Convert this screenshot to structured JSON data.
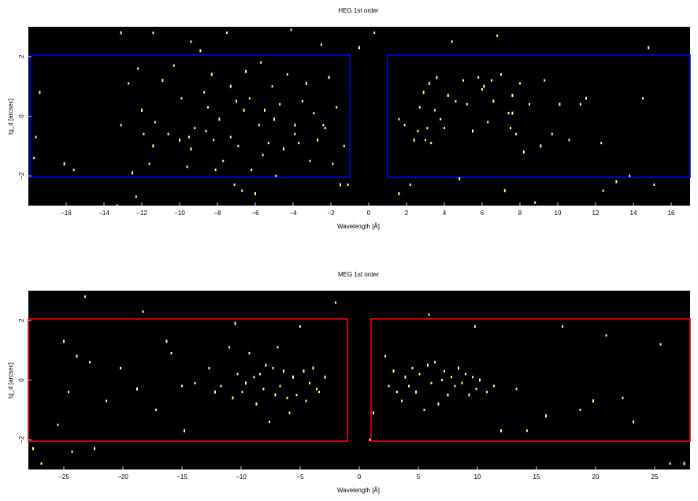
{
  "chart_data": [
    {
      "type": "scatter",
      "title": "HEG 1st order",
      "xlabel": "Wavelength [Å]",
      "ylabel": "tg_d [arcsec]",
      "xlim": [
        -18,
        17
      ],
      "ylim": [
        -3,
        3
      ],
      "background": "#000000",
      "point_color": "#ffff80",
      "xticks": [
        -16,
        -14,
        -12,
        -10,
        -8,
        -6,
        -4,
        -2,
        0,
        2,
        4,
        6,
        8,
        10,
        12,
        14,
        16
      ],
      "yticks": [
        -2,
        0,
        2
      ],
      "regions": [
        {
          "x": [
            -17.9,
            -1.0
          ],
          "y": [
            -2.05,
            2.05
          ],
          "color": "#0000ff"
        },
        {
          "x": [
            1.0,
            17.0
          ],
          "y": [
            -2.05,
            2.05
          ],
          "color": "#0000ff"
        }
      ],
      "points": [
        [
          -17.4,
          0.8
        ],
        [
          -17.6,
          -0.7
        ],
        [
          -17.7,
          -1.4
        ],
        [
          -16.1,
          -1.6
        ],
        [
          -15.6,
          -1.8
        ],
        [
          -13.3,
          -3.0
        ],
        [
          -13.1,
          2.8
        ],
        [
          -13.1,
          -0.3
        ],
        [
          -12.7,
          1.1
        ],
        [
          -12.5,
          -1.9
        ],
        [
          -12.3,
          -2.7
        ],
        [
          -12.2,
          1.6
        ],
        [
          -12.0,
          0.2
        ],
        [
          -11.9,
          -0.6
        ],
        [
          -11.6,
          -1.6
        ],
        [
          -11.4,
          -1.0
        ],
        [
          -11.4,
          2.8
        ],
        [
          -11.3,
          -0.2
        ],
        [
          -10.9,
          1.2
        ],
        [
          -10.6,
          -0.6
        ],
        [
          -10.3,
          1.7
        ],
        [
          -10.0,
          -0.8
        ],
        [
          -9.9,
          0.6
        ],
        [
          -9.6,
          -1.7
        ],
        [
          -9.4,
          -1.1
        ],
        [
          -9.4,
          2.5
        ],
        [
          -9.2,
          -0.4
        ],
        [
          -8.9,
          2.2
        ],
        [
          -8.6,
          -0.5
        ],
        [
          -8.5,
          0.3
        ],
        [
          -8.3,
          1.4
        ],
        [
          -8.2,
          -0.8
        ],
        [
          -8.1,
          -1.8
        ],
        [
          -7.9,
          -0.1
        ],
        [
          -7.7,
          -1.5
        ],
        [
          -7.5,
          2.8
        ],
        [
          -7.3,
          1.0
        ],
        [
          -7.3,
          -0.7
        ],
        [
          -7.1,
          -2.3
        ],
        [
          -7.0,
          0.5
        ],
        [
          -6.9,
          -1.0
        ],
        [
          -6.7,
          -2.5
        ],
        [
          -6.5,
          1.5
        ],
        [
          -6.3,
          0.6
        ],
        [
          -6.2,
          -1.8
        ],
        [
          -6.0,
          -2.6
        ],
        [
          -5.8,
          -0.3
        ],
        [
          -5.7,
          1.8
        ],
        [
          -5.5,
          0.2
        ],
        [
          -5.3,
          -0.9
        ],
        [
          -5.1,
          1.0
        ],
        [
          -5.0,
          -0.1
        ],
        [
          -4.9,
          -2.0
        ],
        [
          -4.7,
          0.4
        ],
        [
          -4.5,
          -1.1
        ],
        [
          -4.3,
          1.4
        ],
        [
          -4.1,
          2.9
        ],
        [
          -3.9,
          -0.3
        ],
        [
          -3.7,
          -0.9
        ],
        [
          -3.5,
          0.5
        ],
        [
          -3.3,
          1.1
        ],
        [
          -3.1,
          -1.5
        ],
        [
          -2.9,
          0.1
        ],
        [
          -2.7,
          -0.8
        ],
        [
          -2.5,
          2.4
        ],
        [
          -2.3,
          -0.4
        ],
        [
          -2.1,
          1.3
        ],
        [
          -1.9,
          -1.6
        ],
        [
          -1.7,
          0.3
        ],
        [
          -1.5,
          -2.3
        ],
        [
          -1.3,
          -1.0
        ],
        [
          -1.1,
          -2.3
        ],
        [
          -0.5,
          2.3
        ],
        [
          0.3,
          2.8
        ],
        [
          1.6,
          -0.1
        ],
        [
          1.6,
          -2.6
        ],
        [
          1.9,
          -0.3
        ],
        [
          2.2,
          -2.3
        ],
        [
          2.4,
          -0.8
        ],
        [
          2.6,
          -0.5
        ],
        [
          2.7,
          0.3
        ],
        [
          2.9,
          0.8
        ],
        [
          3.0,
          -0.8
        ],
        [
          3.1,
          -0.4
        ],
        [
          3.2,
          1.1
        ],
        [
          3.3,
          -0.9
        ],
        [
          3.5,
          0.2
        ],
        [
          3.6,
          1.3
        ],
        [
          3.8,
          -0.1
        ],
        [
          4.0,
          -0.4
        ],
        [
          4.2,
          0.7
        ],
        [
          4.4,
          2.5
        ],
        [
          4.6,
          0.5
        ],
        [
          4.8,
          -2.1
        ],
        [
          5.0,
          1.2
        ],
        [
          5.2,
          0.4
        ],
        [
          5.5,
          -0.5
        ],
        [
          5.8,
          1.3
        ],
        [
          6.0,
          0.9
        ],
        [
          6.1,
          1.0
        ],
        [
          6.3,
          -0.2
        ],
        [
          6.5,
          1.2
        ],
        [
          6.6,
          0.5
        ],
        [
          6.8,
          2.7
        ],
        [
          7.0,
          1.4
        ],
        [
          7.2,
          -2.5
        ],
        [
          7.4,
          0.1
        ],
        [
          7.5,
          -0.4
        ],
        [
          7.6,
          0.7
        ],
        [
          7.8,
          -0.6
        ],
        [
          8.0,
          1.1
        ],
        [
          8.2,
          -1.2
        ],
        [
          8.5,
          0.4
        ],
        [
          8.8,
          -2.9
        ],
        [
          9.1,
          -1.0
        ],
        [
          9.3,
          1.2
        ],
        [
          9.7,
          -0.6
        ],
        [
          10.1,
          0.4
        ],
        [
          10.6,
          -0.8
        ],
        [
          11.2,
          0.4
        ],
        [
          11.5,
          0.6
        ],
        [
          12.3,
          -0.9
        ],
        [
          12.4,
          -2.5
        ],
        [
          13.1,
          -2.2
        ],
        [
          13.8,
          -2.0
        ],
        [
          14.5,
          0.6
        ],
        [
          14.8,
          2.3
        ],
        [
          15.1,
          -2.3
        ],
        [
          -8.7,
          0.8
        ],
        [
          -6.6,
          0.2
        ],
        [
          -3.9,
          -0.6
        ],
        [
          -2.4,
          -0.3
        ],
        [
          7.6,
          0.1
        ],
        [
          -9.5,
          -0.7
        ],
        [
          -5.6,
          -1.3
        ]
      ]
    },
    {
      "type": "scatter",
      "title": "MEG 1st order",
      "xlabel": "Wavelength [Å]",
      "ylabel": "tg_d [arcsec]",
      "xlim": [
        -28,
        28
      ],
      "ylim": [
        -3,
        3
      ],
      "background": "#000000",
      "point_color": "#ffff80",
      "xticks": [
        -25,
        -20,
        -15,
        -10,
        -5,
        0,
        5,
        10,
        15,
        20,
        25
      ],
      "yticks": [
        -2,
        0,
        2
      ],
      "regions": [
        {
          "x": [
            -28.0,
            -1.0
          ],
          "y": [
            -2.05,
            2.05
          ],
          "color": "#ff0000"
        },
        {
          "x": [
            1.0,
            28.0
          ],
          "y": [
            -2.05,
            2.05
          ],
          "color": "#ff0000"
        }
      ],
      "points": [
        [
          -27.6,
          -2.3
        ],
        [
          -26.9,
          -2.8
        ],
        [
          -25.5,
          -1.5
        ],
        [
          -25.0,
          1.3
        ],
        [
          -24.6,
          -0.4
        ],
        [
          -24.3,
          -2.4
        ],
        [
          -23.9,
          0.8
        ],
        [
          -23.2,
          2.8
        ],
        [
          -22.8,
          0.6
        ],
        [
          -22.4,
          -2.3
        ],
        [
          -21.4,
          -0.7
        ],
        [
          -20.2,
          0.4
        ],
        [
          -18.8,
          -0.3
        ],
        [
          -18.3,
          2.3
        ],
        [
          -17.2,
          -1.0
        ],
        [
          -16.3,
          1.3
        ],
        [
          -15.9,
          0.9
        ],
        [
          -15.0,
          -0.2
        ],
        [
          -14.8,
          -1.7
        ],
        [
          -13.9,
          -0.1
        ],
        [
          -12.7,
          0.4
        ],
        [
          -12.2,
          -0.4
        ],
        [
          -11.7,
          -0.2
        ],
        [
          -11.0,
          1.1
        ],
        [
          -10.7,
          -0.6
        ],
        [
          -10.3,
          0.2
        ],
        [
          -9.9,
          -0.4
        ],
        [
          -9.6,
          -0.1
        ],
        [
          -9.3,
          0.9
        ],
        [
          -8.9,
          0.1
        ],
        [
          -8.7,
          -0.8
        ],
        [
          -8.4,
          0.2
        ],
        [
          -8.1,
          -0.3
        ],
        [
          -7.9,
          0.5
        ],
        [
          -7.6,
          -1.4
        ],
        [
          -7.3,
          0.4
        ],
        [
          -7.1,
          -0.5
        ],
        [
          -6.9,
          1.1
        ],
        [
          -6.7,
          -0.2
        ],
        [
          -6.4,
          0.3
        ],
        [
          -6.1,
          -0.6
        ],
        [
          -5.9,
          -1.1
        ],
        [
          -5.6,
          0.1
        ],
        [
          -5.3,
          -0.5
        ],
        [
          -5.0,
          1.8
        ],
        [
          -4.7,
          0.3
        ],
        [
          -4.5,
          -0.7
        ],
        [
          -4.2,
          -0.1
        ],
        [
          -3.9,
          0.4
        ],
        [
          -3.6,
          -0.3
        ],
        [
          -3.4,
          -0.4
        ],
        [
          -2.9,
          0.1
        ],
        [
          -2.0,
          2.6
        ],
        [
          0.9,
          -2.0
        ],
        [
          1.2,
          -1.1
        ],
        [
          2.2,
          0.8
        ],
        [
          2.5,
          -0.2
        ],
        [
          2.9,
          0.3
        ],
        [
          3.2,
          -0.4
        ],
        [
          3.6,
          -0.7
        ],
        [
          3.9,
          0.1
        ],
        [
          4.2,
          -0.2
        ],
        [
          4.5,
          0.4
        ],
        [
          4.8,
          -0.4
        ],
        [
          5.1,
          0.2
        ],
        [
          5.5,
          -1.0
        ],
        [
          5.8,
          0.5
        ],
        [
          6.1,
          -0.1
        ],
        [
          6.4,
          0.6
        ],
        [
          6.7,
          -0.8
        ],
        [
          7.0,
          0.0
        ],
        [
          7.2,
          0.3
        ],
        [
          7.5,
          -0.5
        ],
        [
          7.8,
          0.1
        ],
        [
          8.1,
          -0.2
        ],
        [
          8.4,
          0.4
        ],
        [
          8.7,
          -0.1
        ],
        [
          9.0,
          0.2
        ],
        [
          9.3,
          -0.5
        ],
        [
          9.6,
          0.1
        ],
        [
          9.9,
          -0.3
        ],
        [
          10.2,
          0.0
        ],
        [
          10.8,
          -0.4
        ],
        [
          11.4,
          -0.2
        ],
        [
          12.0,
          -1.7
        ],
        [
          13.3,
          -0.3
        ],
        [
          14.2,
          -1.7
        ],
        [
          15.8,
          -1.2
        ],
        [
          17.2,
          1.8
        ],
        [
          18.7,
          -1.0
        ],
        [
          19.8,
          -0.7
        ],
        [
          20.9,
          1.5
        ],
        [
          22.3,
          -0.6
        ],
        [
          23.2,
          -1.4
        ],
        [
          25.5,
          1.2
        ],
        [
          26.3,
          -2.8
        ],
        [
          27.5,
          -2.8
        ],
        [
          5.9,
          2.2
        ],
        [
          9.8,
          1.8
        ],
        [
          -10.5,
          1.9
        ]
      ]
    }
  ]
}
